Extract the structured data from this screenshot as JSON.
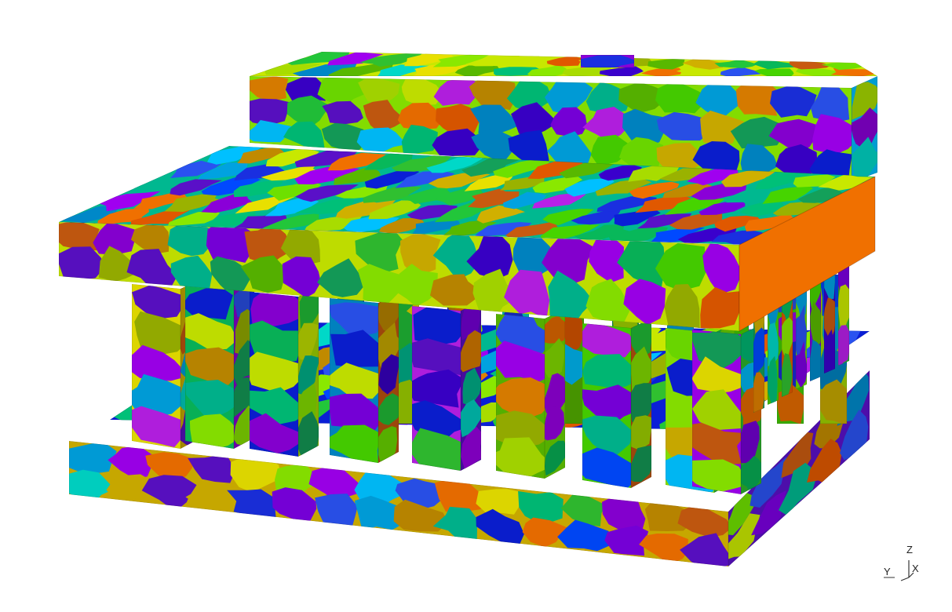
{
  "viewport": {
    "background": "#ffffff",
    "palette": [
      "#0a1fd6",
      "#1a2fe0",
      "#0049ff",
      "#2a52f0",
      "#3a00cc",
      "#5a10c8",
      "#7a00e0",
      "#8a00d8",
      "#a000f0",
      "#b820e8",
      "#0088c8",
      "#00a2e0",
      "#00c0ff",
      "#00d8c8",
      "#00b890",
      "#00c078",
      "#08b85a",
      "#22c63a",
      "#46d400",
      "#6ee000",
      "#8ae800",
      "#a8dc00",
      "#c8e800",
      "#e8e000",
      "#d0b000",
      "#c08a00",
      "#e08000",
      "#f07000",
      "#e05800",
      "#c85a10",
      "#9ab200",
      "#58b800",
      "#30c030",
      "#14a05a"
    ],
    "accent_orange": "#f07000"
  },
  "orientation_triad": {
    "z_label": "Z",
    "y_label": "Y",
    "x_label": "X"
  }
}
